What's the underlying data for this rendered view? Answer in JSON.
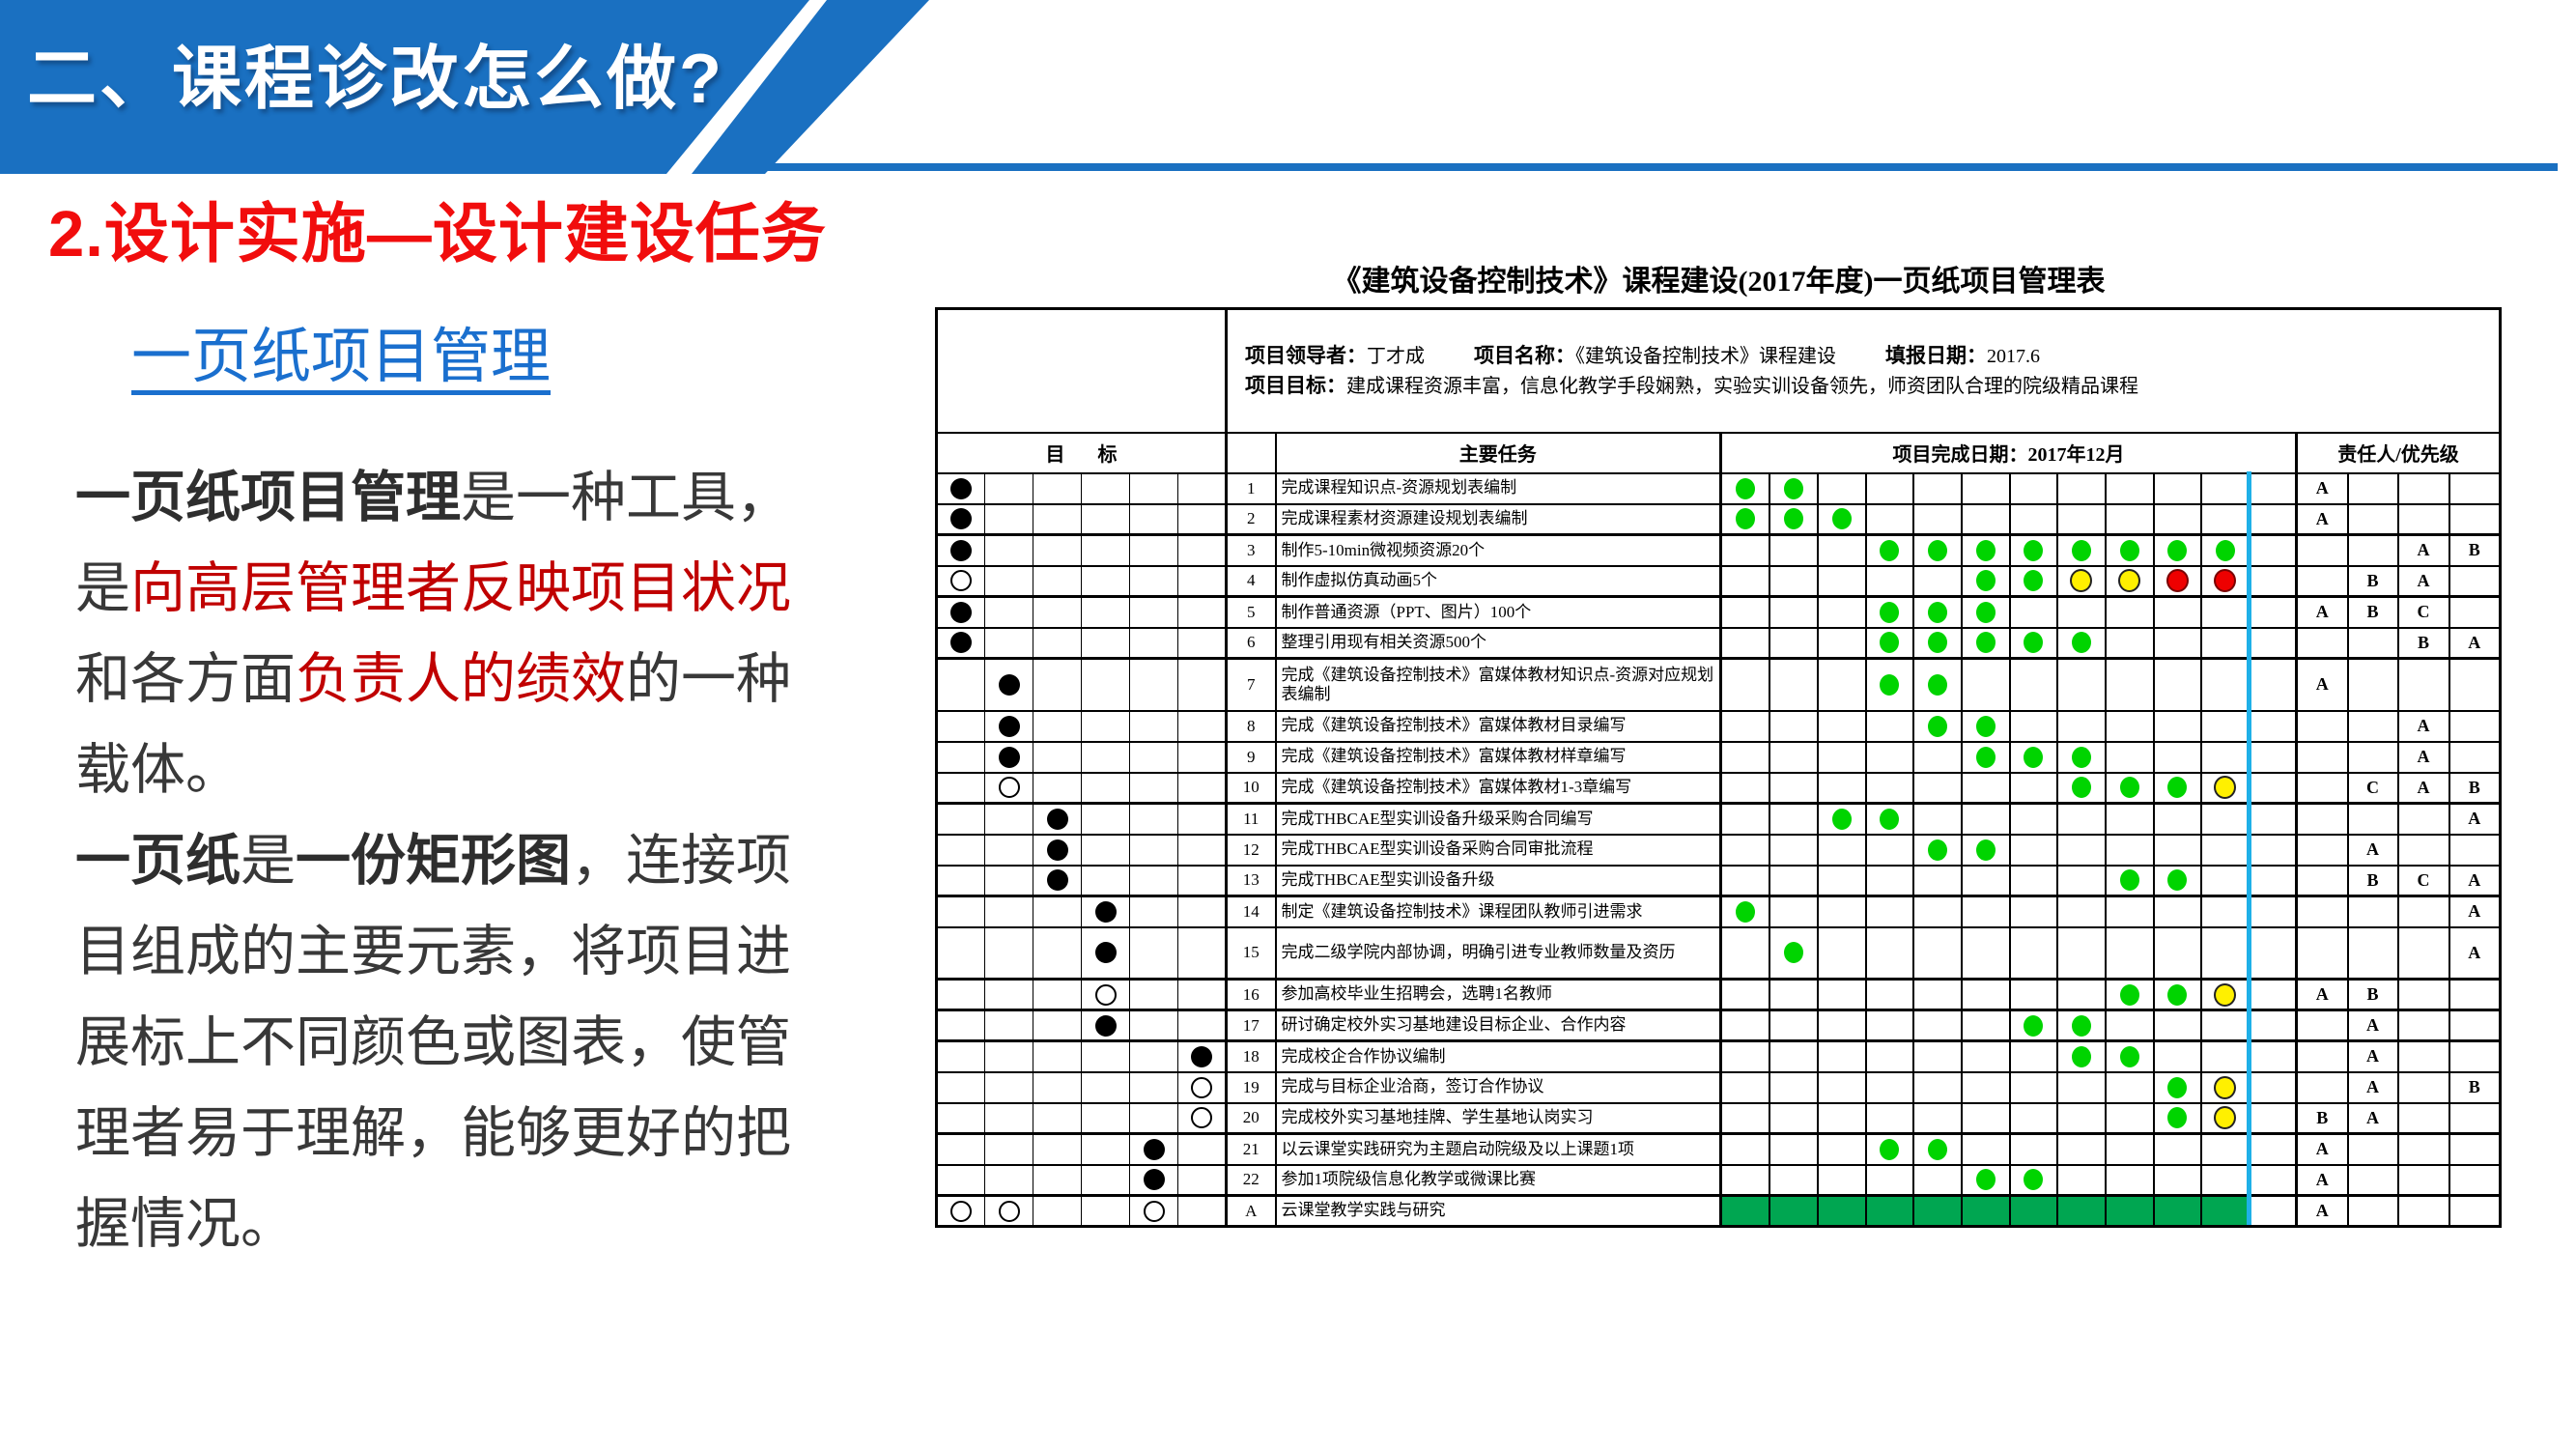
{
  "slide": {
    "banner_title": "二、课程诊改怎么做?",
    "heading": "2.设计实施—设计建设任务",
    "subheading": "一页纸项目管理",
    "paragraph": [
      [
        {
          "t": "一页纸项目管理",
          "s": "b"
        },
        {
          "t": "是一种工具，",
          "s": "n"
        }
      ],
      [
        {
          "t": "是",
          "s": "n"
        },
        {
          "t": "向高层管理者反映项目状况",
          "s": "r"
        }
      ],
      [
        {
          "t": "和各方面",
          "s": "n"
        },
        {
          "t": "负责人的绩效",
          "s": "r"
        },
        {
          "t": "的一种",
          "s": "n"
        }
      ],
      [
        {
          "t": "载体。",
          "s": "n"
        }
      ],
      [
        {
          "t": "一页纸",
          "s": "b"
        },
        {
          "t": "是",
          "s": "n"
        },
        {
          "t": "一份矩形图",
          "s": "b"
        },
        {
          "t": "，连接项",
          "s": "n"
        }
      ],
      [
        {
          "t": "目组成的主要元素，将项目进",
          "s": "n"
        }
      ],
      [
        {
          "t": "展标上不同颜色或图表，使管",
          "s": "n"
        }
      ],
      [
        {
          "t": "理者易于理解，能够更好的把",
          "s": "n"
        }
      ],
      [
        {
          "t": "握情况。",
          "s": "n"
        }
      ]
    ]
  },
  "table": {
    "title": "《建筑设备控制技术》课程建设(2017年度)一页纸项目管理表",
    "info": {
      "leader_label": "项目领导者：",
      "leader_value": "丁才成",
      "project_label": "项目名称：",
      "project_value": "《建筑设备控制技术》课程建设",
      "report_date_label": "填报日期：",
      "report_date_value": "2017.6",
      "goal_label": "项目目标：",
      "goal_value": "建成课程资源丰富，信息化教学手段娴熟，实验实训设备领先，师资团队合理的院级精品课程"
    },
    "headers": {
      "goal": "目标",
      "task": "主要任务",
      "timeline": "项目完成日期：2017年12月",
      "owner": "责任人/优先级"
    },
    "goal_columns": 6,
    "timeline_columns": 12,
    "owner_columns": 4,
    "rows": [
      {
        "no": "1",
        "task": "完成课程知识点-资源规划表编制",
        "goals": [
          [
            1,
            "f"
          ]
        ],
        "dots": [
          [
            1,
            "g"
          ],
          [
            2,
            "g"
          ]
        ],
        "pr": [
          "A",
          "",
          "",
          ""
        ]
      },
      {
        "no": "2",
        "task": "完成课程素材资源建设规划表编制",
        "goals": [
          [
            1,
            "f"
          ]
        ],
        "dots": [
          [
            1,
            "g"
          ],
          [
            2,
            "g"
          ],
          [
            3,
            "g"
          ]
        ],
        "pr": [
          "A",
          "",
          "",
          ""
        ],
        "thick": true
      },
      {
        "no": "3",
        "task": "制作5-10min微视频资源20个",
        "goals": [
          [
            1,
            "f"
          ]
        ],
        "dots": [
          [
            4,
            "g"
          ],
          [
            5,
            "g"
          ],
          [
            6,
            "g"
          ],
          [
            7,
            "g"
          ],
          [
            8,
            "g"
          ],
          [
            9,
            "g"
          ],
          [
            10,
            "g"
          ],
          [
            11,
            "g"
          ]
        ],
        "pr": [
          "",
          "",
          "A",
          "B"
        ]
      },
      {
        "no": "4",
        "task": "制作虚拟仿真动画5个",
        "goals": [
          [
            1,
            "o"
          ]
        ],
        "dots": [
          [
            6,
            "g"
          ],
          [
            7,
            "g"
          ],
          [
            8,
            "y"
          ],
          [
            9,
            "y"
          ],
          [
            10,
            "r"
          ],
          [
            11,
            "r"
          ]
        ],
        "pr": [
          "",
          "B",
          "A",
          ""
        ],
        "thick": true
      },
      {
        "no": "5",
        "task": "制作普通资源（PPT、图片）100个",
        "goals": [
          [
            1,
            "f"
          ]
        ],
        "dots": [
          [
            4,
            "g"
          ],
          [
            5,
            "g"
          ],
          [
            6,
            "g"
          ]
        ],
        "pr": [
          "A",
          "B",
          "C",
          ""
        ]
      },
      {
        "no": "6",
        "task": "整理引用现有相关资源500个",
        "goals": [
          [
            1,
            "f"
          ]
        ],
        "dots": [
          [
            4,
            "g"
          ],
          [
            5,
            "g"
          ],
          [
            6,
            "g"
          ],
          [
            7,
            "g"
          ],
          [
            8,
            "g"
          ]
        ],
        "pr": [
          "",
          "",
          "B",
          "A"
        ],
        "thick": true
      },
      {
        "no": "7",
        "task": "完成《建筑设备控制技术》富媒体教材知识点-资源对应规划表编制",
        "goals": [
          [
            2,
            "f"
          ]
        ],
        "dots": [
          [
            4,
            "g"
          ],
          [
            5,
            "g"
          ]
        ],
        "pr": [
          "A",
          "",
          "",
          ""
        ],
        "tall": true
      },
      {
        "no": "8",
        "task": "完成《建筑设备控制技术》富媒体教材目录编写",
        "goals": [
          [
            2,
            "f"
          ]
        ],
        "dots": [
          [
            5,
            "g"
          ],
          [
            6,
            "g"
          ]
        ],
        "pr": [
          "",
          "",
          "A",
          ""
        ]
      },
      {
        "no": "9",
        "task": "完成《建筑设备控制技术》富媒体教材样章编写",
        "goals": [
          [
            2,
            "f"
          ]
        ],
        "dots": [
          [
            6,
            "g"
          ],
          [
            7,
            "g"
          ],
          [
            8,
            "g"
          ]
        ],
        "pr": [
          "",
          "",
          "A",
          ""
        ]
      },
      {
        "no": "10",
        "task": "完成《建筑设备控制技术》富媒体教材1-3章编写",
        "goals": [
          [
            2,
            "o"
          ]
        ],
        "dots": [
          [
            8,
            "g"
          ],
          [
            9,
            "g"
          ],
          [
            10,
            "g"
          ],
          [
            11,
            "y"
          ]
        ],
        "pr": [
          "",
          "C",
          "A",
          "B"
        ],
        "thick": true
      },
      {
        "no": "11",
        "task": "完成THBCAE型实训设备升级采购合同编写",
        "goals": [
          [
            3,
            "f"
          ]
        ],
        "dots": [
          [
            3,
            "g"
          ],
          [
            4,
            "g"
          ]
        ],
        "pr": [
          "",
          "",
          "",
          "A"
        ]
      },
      {
        "no": "12",
        "task": "完成THBCAE型实训设备采购合同审批流程",
        "goals": [
          [
            3,
            "f"
          ]
        ],
        "dots": [
          [
            5,
            "g"
          ],
          [
            6,
            "g"
          ]
        ],
        "pr": [
          "",
          "A",
          "",
          ""
        ]
      },
      {
        "no": "13",
        "task": "完成THBCAE型实训设备升级",
        "goals": [
          [
            3,
            "f"
          ]
        ],
        "dots": [
          [
            9,
            "g"
          ],
          [
            10,
            "g"
          ]
        ],
        "pr": [
          "",
          "B",
          "C",
          "A"
        ],
        "thick": true
      },
      {
        "no": "14",
        "task": "制定《建筑设备控制技术》课程团队教师引进需求",
        "goals": [
          [
            4,
            "f"
          ]
        ],
        "dots": [
          [
            1,
            "g"
          ]
        ],
        "pr": [
          "",
          "",
          "",
          "A"
        ]
      },
      {
        "no": "15",
        "task": "完成二级学院内部协调，明确引进专业教师数量及资历",
        "goals": [
          [
            4,
            "f"
          ]
        ],
        "dots": [
          [
            2,
            "g"
          ]
        ],
        "pr": [
          "",
          "",
          "",
          "A"
        ],
        "tall": true,
        "thick": true
      },
      {
        "no": "16",
        "task": "参加高校毕业生招聘会，选聘1名教师",
        "goals": [
          [
            4,
            "o"
          ]
        ],
        "dots": [
          [
            9,
            "g"
          ],
          [
            10,
            "g"
          ],
          [
            11,
            "y"
          ]
        ],
        "pr": [
          "A",
          "B",
          "",
          ""
        ],
        "thick": true
      },
      {
        "no": "17",
        "task": "研讨确定校外实习基地建设目标企业、合作内容",
        "goals": [
          [
            4,
            "f"
          ]
        ],
        "dots": [
          [
            7,
            "g"
          ],
          [
            8,
            "g"
          ]
        ],
        "pr": [
          "",
          "A",
          "",
          ""
        ],
        "thick": true
      },
      {
        "no": "18",
        "task": "完成校企合作协议编制",
        "goals": [
          [
            6,
            "f"
          ]
        ],
        "dots": [
          [
            8,
            "g"
          ],
          [
            9,
            "g"
          ]
        ],
        "pr": [
          "",
          "A",
          "",
          ""
        ]
      },
      {
        "no": "19",
        "task": "完成与目标企业洽商，签订合作协议",
        "goals": [
          [
            6,
            "o"
          ]
        ],
        "dots": [
          [
            10,
            "g"
          ],
          [
            11,
            "y"
          ]
        ],
        "pr": [
          "",
          "A",
          "",
          "B"
        ]
      },
      {
        "no": "20",
        "task": "完成校外实习基地挂牌、学生基地认岗实习",
        "goals": [
          [
            6,
            "o"
          ]
        ],
        "dots": [
          [
            10,
            "g"
          ],
          [
            11,
            "y"
          ]
        ],
        "pr": [
          "B",
          "A",
          "",
          ""
        ],
        "thick": true
      },
      {
        "no": "21",
        "task": "以云课堂实践研究为主题启动院级及以上课题1项",
        "goals": [
          [
            5,
            "f"
          ]
        ],
        "dots": [
          [
            4,
            "g"
          ],
          [
            5,
            "g"
          ]
        ],
        "pr": [
          "A",
          "",
          "",
          ""
        ]
      },
      {
        "no": "22",
        "task": "参加1项院级信息化教学或微课比赛",
        "goals": [
          [
            5,
            "f"
          ]
        ],
        "dots": [
          [
            6,
            "g"
          ],
          [
            7,
            "g"
          ]
        ],
        "pr": [
          "A",
          "",
          "",
          ""
        ],
        "thick": true
      },
      {
        "no": "A",
        "task": "云课堂教学实践与研究",
        "goals": [
          [
            1,
            "o"
          ],
          [
            2,
            "o"
          ],
          [
            5,
            "o"
          ]
        ],
        "band": [
          1,
          11
        ],
        "dots": [],
        "pr": [
          "A",
          "",
          "",
          ""
        ],
        "rowA": true
      }
    ]
  },
  "colors": {
    "banner_blue": "#1A70C1",
    "heading_red": "#F10D0D",
    "body_red": "#C00000",
    "link_blue": "#1A6FCE",
    "dot_green": "#00D400",
    "dot_yellow": "#FFF000",
    "dot_red": "#EE0000",
    "band_green": "#00A651",
    "today_marker_cyan": "#1FB0E8"
  }
}
